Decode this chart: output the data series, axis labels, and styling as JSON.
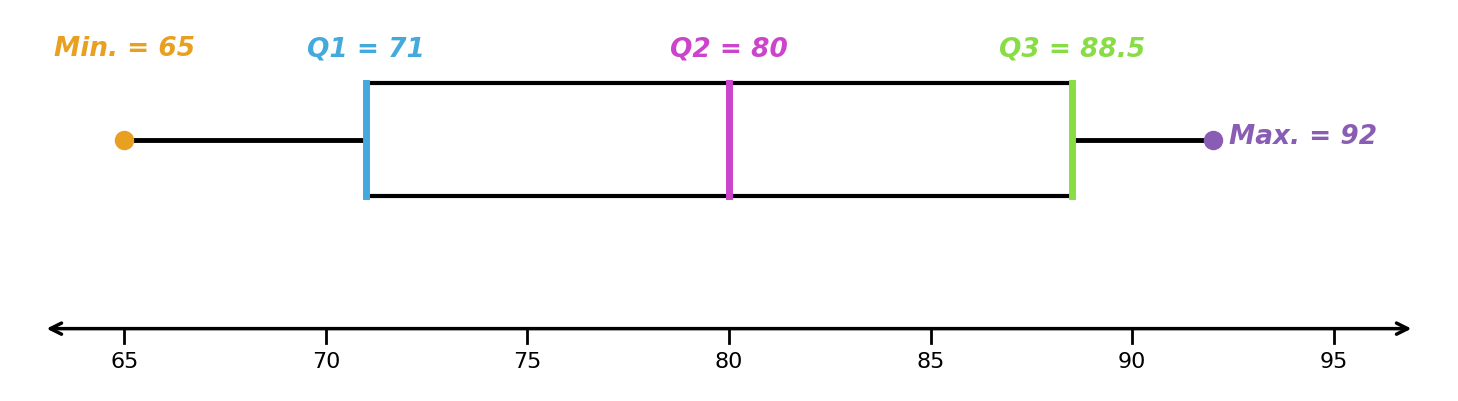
{
  "min_val": 65,
  "q1": 71,
  "q2": 80,
  "q3": 88.5,
  "max_val": 92,
  "data_min": 63,
  "data_max": 97,
  "tick_values": [
    65,
    70,
    75,
    80,
    85,
    90,
    95
  ],
  "min_label": "Min. = 65",
  "max_label": "Max. = 92",
  "q1_label": "Q1 = 71",
  "q2_label": "Q2 = 80",
  "q3_label": "Q3 = 88.5",
  "color_min": "#E8A020",
  "color_max": "#8A5DB5",
  "color_q1": "#44AADD",
  "color_q2": "#CC44CC",
  "color_q3": "#88DD44",
  "box_edge_color": "#000000",
  "whisker_color": "#000000",
  "number_line_color": "#000000",
  "tick_label_fontsize": 16,
  "annotation_fontsize": 19
}
